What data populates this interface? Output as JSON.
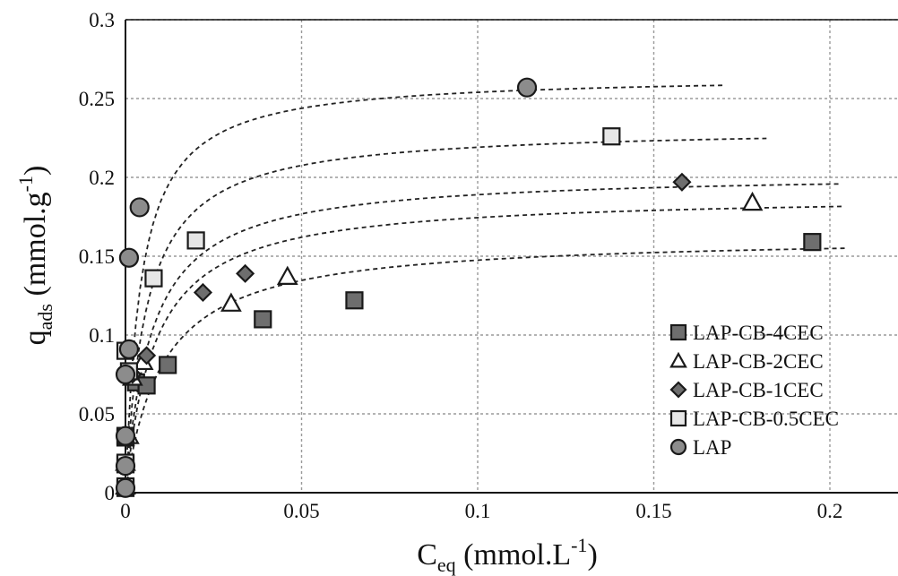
{
  "chart_data": {
    "type": "scatter",
    "xlabel": "C_eq (mmol.L^-1)",
    "xlabel_parts": {
      "main": "C",
      "sub": "eq",
      "unit_open": " (mmol.L",
      "sup": "-1",
      "unit_close": ")"
    },
    "ylabel": "q_ads (mmol.g^-1)",
    "ylabel_parts": {
      "main": "q",
      "sub": "ads",
      "unit_open": " (mmol.g",
      "sup": "-1",
      "unit_close": ")"
    },
    "xlim": [
      0,
      0.22
    ],
    "ylim": [
      0,
      0.3
    ],
    "x_ticks": [
      0,
      0.05,
      0.1,
      0.15,
      0.2
    ],
    "x_tick_labels": [
      "0",
      "0.05",
      "0.1",
      "0.15",
      "0.2"
    ],
    "y_ticks": [
      0,
      0.05,
      0.1,
      0.15,
      0.2,
      0.25,
      0.3
    ],
    "y_tick_labels": [
      "0",
      "0.05",
      "0.1",
      "0.15",
      "0.2",
      "0.25",
      "0.3"
    ],
    "grid": true,
    "legend_position": "bottom-right",
    "series": [
      {
        "name": "LAP-CB-4CEC",
        "marker": "square",
        "fill": "#6e6e6e",
        "points": [
          [
            0.0,
            0.003
          ],
          [
            0.0,
            0.018
          ],
          [
            0.0,
            0.035
          ],
          [
            0.003,
            0.07
          ],
          [
            0.006,
            0.068
          ],
          [
            0.012,
            0.081
          ],
          [
            0.039,
            0.11
          ],
          [
            0.065,
            0.122
          ],
          [
            0.195,
            0.159
          ]
        ],
        "fit": {
          "qmax": 0.163,
          "K": 95,
          "xmax": 0.205
        }
      },
      {
        "name": "LAP-CB-2CEC",
        "marker": "triangle",
        "fill": "#ffffff",
        "points": [
          [
            0.0,
            0.004
          ],
          [
            0.0,
            0.019
          ],
          [
            0.001,
            0.036
          ],
          [
            0.002,
            0.073
          ],
          [
            0.005,
            0.083
          ],
          [
            0.03,
            0.12
          ],
          [
            0.046,
            0.137
          ],
          [
            0.178,
            0.184
          ]
        ],
        "fit": {
          "qmax": 0.189,
          "K": 120,
          "xmax": 0.204
        }
      },
      {
        "name": "LAP-CB-1CEC",
        "marker": "diamond",
        "fill": "#6e6e6e",
        "points": [
          [
            0.0,
            0.004
          ],
          [
            0.0,
            0.019
          ],
          [
            0.0,
            0.036
          ],
          [
            0.002,
            0.075
          ],
          [
            0.006,
            0.087
          ],
          [
            0.022,
            0.127
          ],
          [
            0.034,
            0.139
          ],
          [
            0.158,
            0.197
          ]
        ],
        "fit": {
          "qmax": 0.203,
          "K": 135,
          "xmax": 0.203
        }
      },
      {
        "name": "LAP-CB-0.5CEC",
        "marker": "square",
        "fill": "#e6e6e6",
        "points": [
          [
            0.0,
            0.004
          ],
          [
            0.0,
            0.019
          ],
          [
            0.0,
            0.036
          ],
          [
            0.001,
            0.077
          ],
          [
            0.0,
            0.09
          ],
          [
            0.008,
            0.136
          ],
          [
            0.02,
            0.16
          ],
          [
            0.138,
            0.226
          ]
        ],
        "fit": {
          "qmax": 0.232,
          "K": 170,
          "xmax": 0.182
        }
      },
      {
        "name": "LAP",
        "marker": "circle",
        "fill": "#8c8c8c",
        "points": [
          [
            0.0,
            0.003
          ],
          [
            0.0,
            0.017
          ],
          [
            0.0,
            0.036
          ],
          [
            0.0,
            0.075
          ],
          [
            0.001,
            0.091
          ],
          [
            0.001,
            0.149
          ],
          [
            0.004,
            0.181
          ],
          [
            0.114,
            0.257
          ]
        ],
        "fit": {
          "qmax": 0.265,
          "K": 230,
          "xmax": 0.17
        }
      }
    ]
  }
}
